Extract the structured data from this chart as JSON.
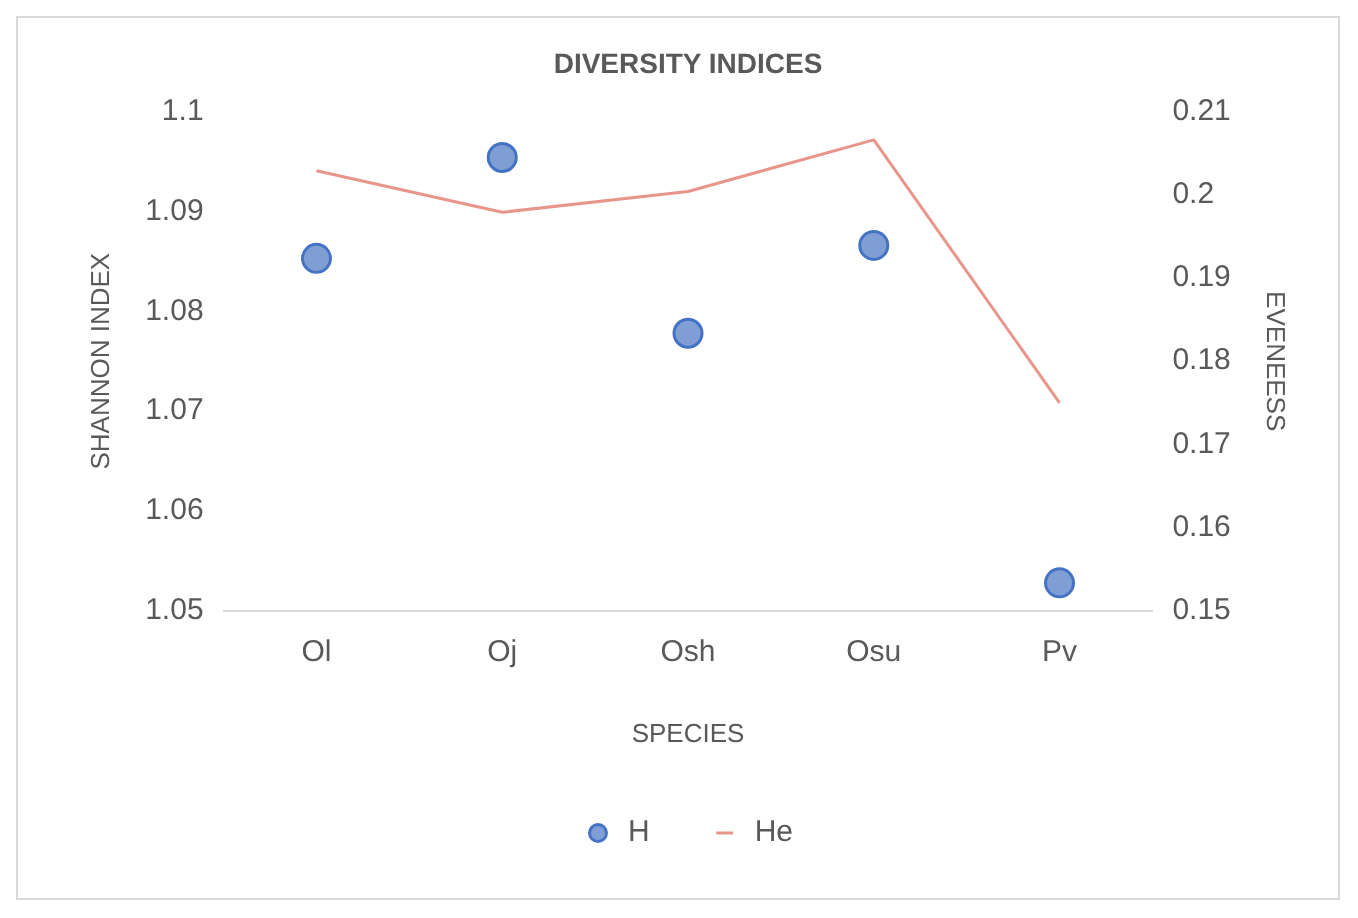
{
  "chart_data": {
    "type": "line",
    "title": "DIVERSITY INDICES",
    "xlabel": "SPECIES",
    "ylabel": "SHANNON INDEX",
    "y2label": "EVENEESS",
    "categories": [
      "Ol",
      "Oj",
      "Osh",
      "Osu",
      "Pv"
    ],
    "series": [
      {
        "name": "H",
        "type": "scatter",
        "color": "#7f9fd4",
        "values": [
          1.0853,
          1.0954,
          1.0778,
          1.0866,
          1.0528
        ],
        "marker": "circle"
      },
      {
        "name": "He",
        "type": "line",
        "axis": "y2",
        "color": "#e8958b",
        "values": [
          0.2029,
          0.1979,
          0.2004,
          0.2066,
          0.175
        ],
        "marker": "none"
      }
    ],
    "ylim": [
      1.05,
      1.1
    ],
    "yticks": [
      1.05,
      1.06,
      1.07,
      1.08,
      1.09,
      1.1
    ],
    "y2lim": [
      0.15,
      0.21
    ],
    "y2ticks": [
      0.15,
      0.16,
      0.17,
      0.18,
      0.19,
      0.2,
      0.21
    ],
    "grid": false,
    "legend": "bottom"
  }
}
